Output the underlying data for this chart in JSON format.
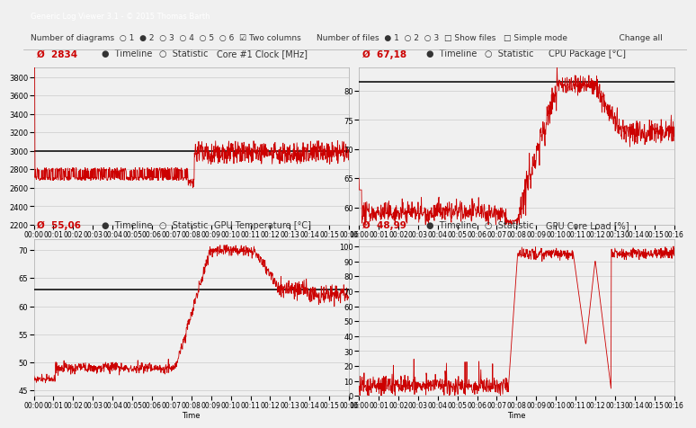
{
  "title_bar": "Generic Log Viewer 3.1 - © 2015 Thomas Barth",
  "toolbar_bg": "#f0f0f0",
  "chart_bg": "#e8e8e8",
  "plot_bg": "#f5f5f5",
  "border_color": "#cccccc",
  "line_color": "#cc0000",
  "mean_line_color": "#000000",
  "text_color": "#333333",
  "avg_color": "#cc0000",
  "panels": [
    {
      "label": "Core #1 Clock [MHz]",
      "avg": "2834",
      "ylim": [
        2200,
        3900
      ],
      "yticks": [
        2200,
        2400,
        2600,
        2800,
        3000,
        3200,
        3400,
        3600,
        3800
      ],
      "mean_line": 3000
    },
    {
      "label": "CPU Package [°C]",
      "avg": "67,18",
      "ylim": [
        57,
        84
      ],
      "yticks": [
        60,
        65,
        70,
        75,
        80
      ],
      "mean_line": 81.5
    },
    {
      "label": "GPU Temperature [°C]",
      "avg": "55,06",
      "ylim": [
        44,
        72
      ],
      "yticks": [
        45,
        50,
        55,
        60,
        65,
        70
      ],
      "mean_line": 63
    },
    {
      "label": "GPU Core Load [%]",
      "avg": "48,99",
      "ylim": [
        0,
        105
      ],
      "yticks": [
        0,
        10,
        20,
        30,
        40,
        50,
        60,
        70,
        80,
        90,
        100
      ],
      "mean_line": null
    }
  ],
  "xtick_labels": [
    "00:00",
    "00:01",
    "00:02",
    "00:03",
    "00:04",
    "00:05",
    "00:06",
    "00:07",
    "00:08",
    "00:09",
    "00:10",
    "00:11",
    "00:12",
    "00:13",
    "00:14",
    "00:15",
    "00:16"
  ],
  "n_points": 970,
  "t_max": 16.0
}
